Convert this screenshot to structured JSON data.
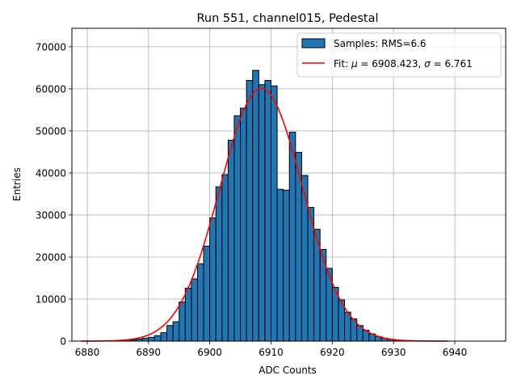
{
  "chart_data": {
    "type": "bar",
    "title": "Run 551, channel015, Pedestal",
    "xlabel": "ADC Counts",
    "ylabel": "Entries",
    "xlim": [
      6877.5,
      6948.3
    ],
    "ylim": [
      0,
      74400
    ],
    "xticks": [
      6880,
      6890,
      6900,
      6910,
      6920,
      6930,
      6940
    ],
    "yticks": [
      0,
      10000,
      20000,
      30000,
      40000,
      50000,
      60000,
      70000
    ],
    "grid": true,
    "legend_position": "top-right",
    "colors": {
      "bars": "#1f77b4",
      "bar_edge": "#000000",
      "fit": "#ff0000",
      "grid": "#b0b0b0"
    },
    "series": [
      {
        "name": "Samples: RMS=6.6",
        "kind": "histogram",
        "bin_width": 1,
        "bin_starts": [
          6884,
          6885,
          6886,
          6887,
          6888,
          6889,
          6890,
          6891,
          6892,
          6893,
          6894,
          6895,
          6896,
          6897,
          6898,
          6899,
          6900,
          6901,
          6902,
          6903,
          6904,
          6905,
          6906,
          6907,
          6908,
          6909,
          6910,
          6911,
          6912,
          6913,
          6914,
          6915,
          6916,
          6917,
          6918,
          6919,
          6920,
          6921,
          6922,
          6923,
          6924,
          6925,
          6926,
          6927,
          6928,
          6929,
          6930,
          6931
        ],
        "values": [
          30,
          80,
          150,
          300,
          500,
          700,
          900,
          1300,
          2000,
          3700,
          4600,
          9300,
          12600,
          14800,
          18400,
          22600,
          29300,
          36700,
          39600,
          47800,
          53600,
          55400,
          62000,
          64400,
          61000,
          62000,
          60700,
          36100,
          35900,
          49700,
          44900,
          39400,
          31800,
          26600,
          21800,
          17300,
          12800,
          9800,
          6900,
          5300,
          3700,
          2600,
          1700,
          1100,
          700,
          400,
          200,
          100
        ]
      },
      {
        "name": "Fit: μ = 6908.423, σ = 6.761",
        "kind": "gaussian_fit",
        "x_range": [
          6879,
          6939
        ],
        "mu": 6908.423,
        "sigma": 6.761,
        "amplitude": 60100
      }
    ],
    "legend": [
      {
        "label_prefix": "Samples: RMS=6.6",
        "type": "patch"
      },
      {
        "label_prefix": "Fit: ",
        "mu_symbol": "μ",
        "mu_text": " = 6908.423, ",
        "sigma_symbol": "σ",
        "sigma_text": " = 6.761",
        "type": "line"
      }
    ]
  }
}
